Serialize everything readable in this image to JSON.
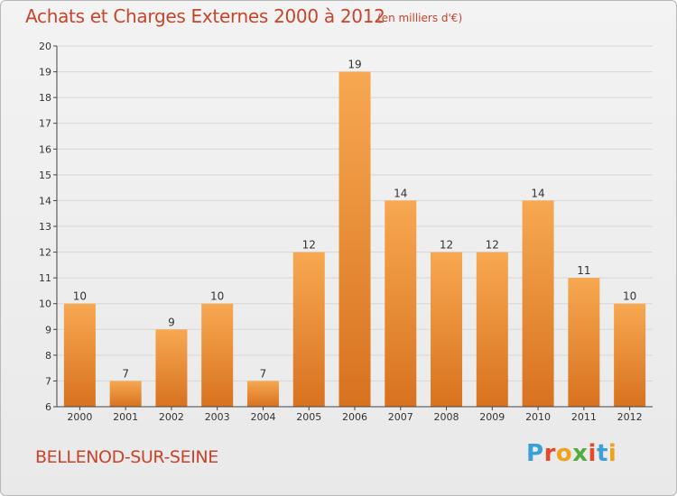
{
  "header": {
    "title": "Achats et Charges Externes 2000 à 2012",
    "unit_note": "(en milliers d'€)"
  },
  "footer": {
    "place": "BELLENOD-SUR-SEINE",
    "logo_text": "Proxiti",
    "logo_colors": [
      "#3aa0d8",
      "#e5482b",
      "#f2a11d",
      "#4fae3d",
      "#e5482b",
      "#3aa0d8",
      "#f2a11d"
    ]
  },
  "chart_data": {
    "type": "bar",
    "title": "Achats et Charges Externes 2000 à 2012",
    "subtitle": "(en milliers d'€)",
    "xlabel": "",
    "ylabel": "",
    "categories": [
      "2000",
      "2001",
      "2002",
      "2003",
      "2004",
      "2005",
      "2006",
      "2007",
      "2008",
      "2009",
      "2010",
      "2011",
      "2012"
    ],
    "values": [
      10,
      7,
      9,
      10,
      7,
      12,
      19,
      14,
      12,
      12,
      14,
      11,
      10
    ],
    "data_labels": [
      "10",
      "7",
      "9",
      "10",
      "7",
      "12",
      "19",
      "14",
      "12",
      "12",
      "14",
      "11",
      "10"
    ],
    "ylim": [
      6,
      20
    ],
    "yticks": [
      "6",
      "7",
      "8",
      "9",
      "10",
      "11",
      "12",
      "13",
      "14",
      "15",
      "16",
      "17",
      "18",
      "19",
      "20"
    ],
    "grid": true,
    "legend": "none",
    "colors": {
      "bar_light": "#f7a851",
      "bar_dark": "#d8721f",
      "grid": "#d6d6d6",
      "axis": "#444444"
    }
  }
}
